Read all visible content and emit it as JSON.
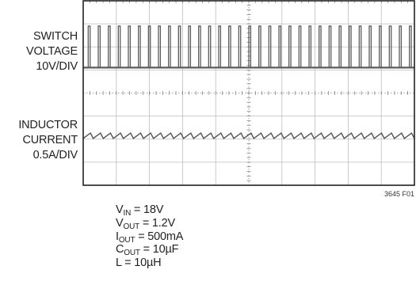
{
  "chart_data": {
    "type": "line",
    "subtype": "oscilloscope-capture",
    "grid": {
      "divisions_x": 10,
      "divisions_y": 8,
      "minor_ticks_per_div": 5
    },
    "series": [
      {
        "name": "SWITCH VOLTAGE",
        "label_lines": [
          "SWITCH",
          "VOLTAGE",
          "10V/DIV"
        ],
        "scale": "10V/DIV",
        "waveform": "pulse-train",
        "high_level_v": 18,
        "pulse_count": 33
      },
      {
        "name": "INDUCTOR CURRENT",
        "label_lines": [
          "INDUCTOR",
          "CURRENT",
          "0.5A/DIV"
        ],
        "scale": "0.5A/DIV",
        "waveform": "triangle-ripple",
        "average_a": 0.5,
        "cycles": 33
      }
    ],
    "figure_id": "3645 F01"
  },
  "conditions": [
    {
      "sym": "V",
      "sub": "IN",
      "rest": " = 18V"
    },
    {
      "sym": "V",
      "sub": "OUT",
      "rest": " = 1.2V"
    },
    {
      "sym": "I",
      "sub": "OUT",
      "rest": " = 500mA"
    },
    {
      "sym": "C",
      "sub": "OUT",
      "rest": " = 10µF"
    },
    {
      "sym": "L",
      "sub": "",
      "rest": " = 10µH"
    }
  ],
  "colors": {
    "trace": "#5a5a5a",
    "grid": "#bdbdbd",
    "frame": "#222222"
  }
}
